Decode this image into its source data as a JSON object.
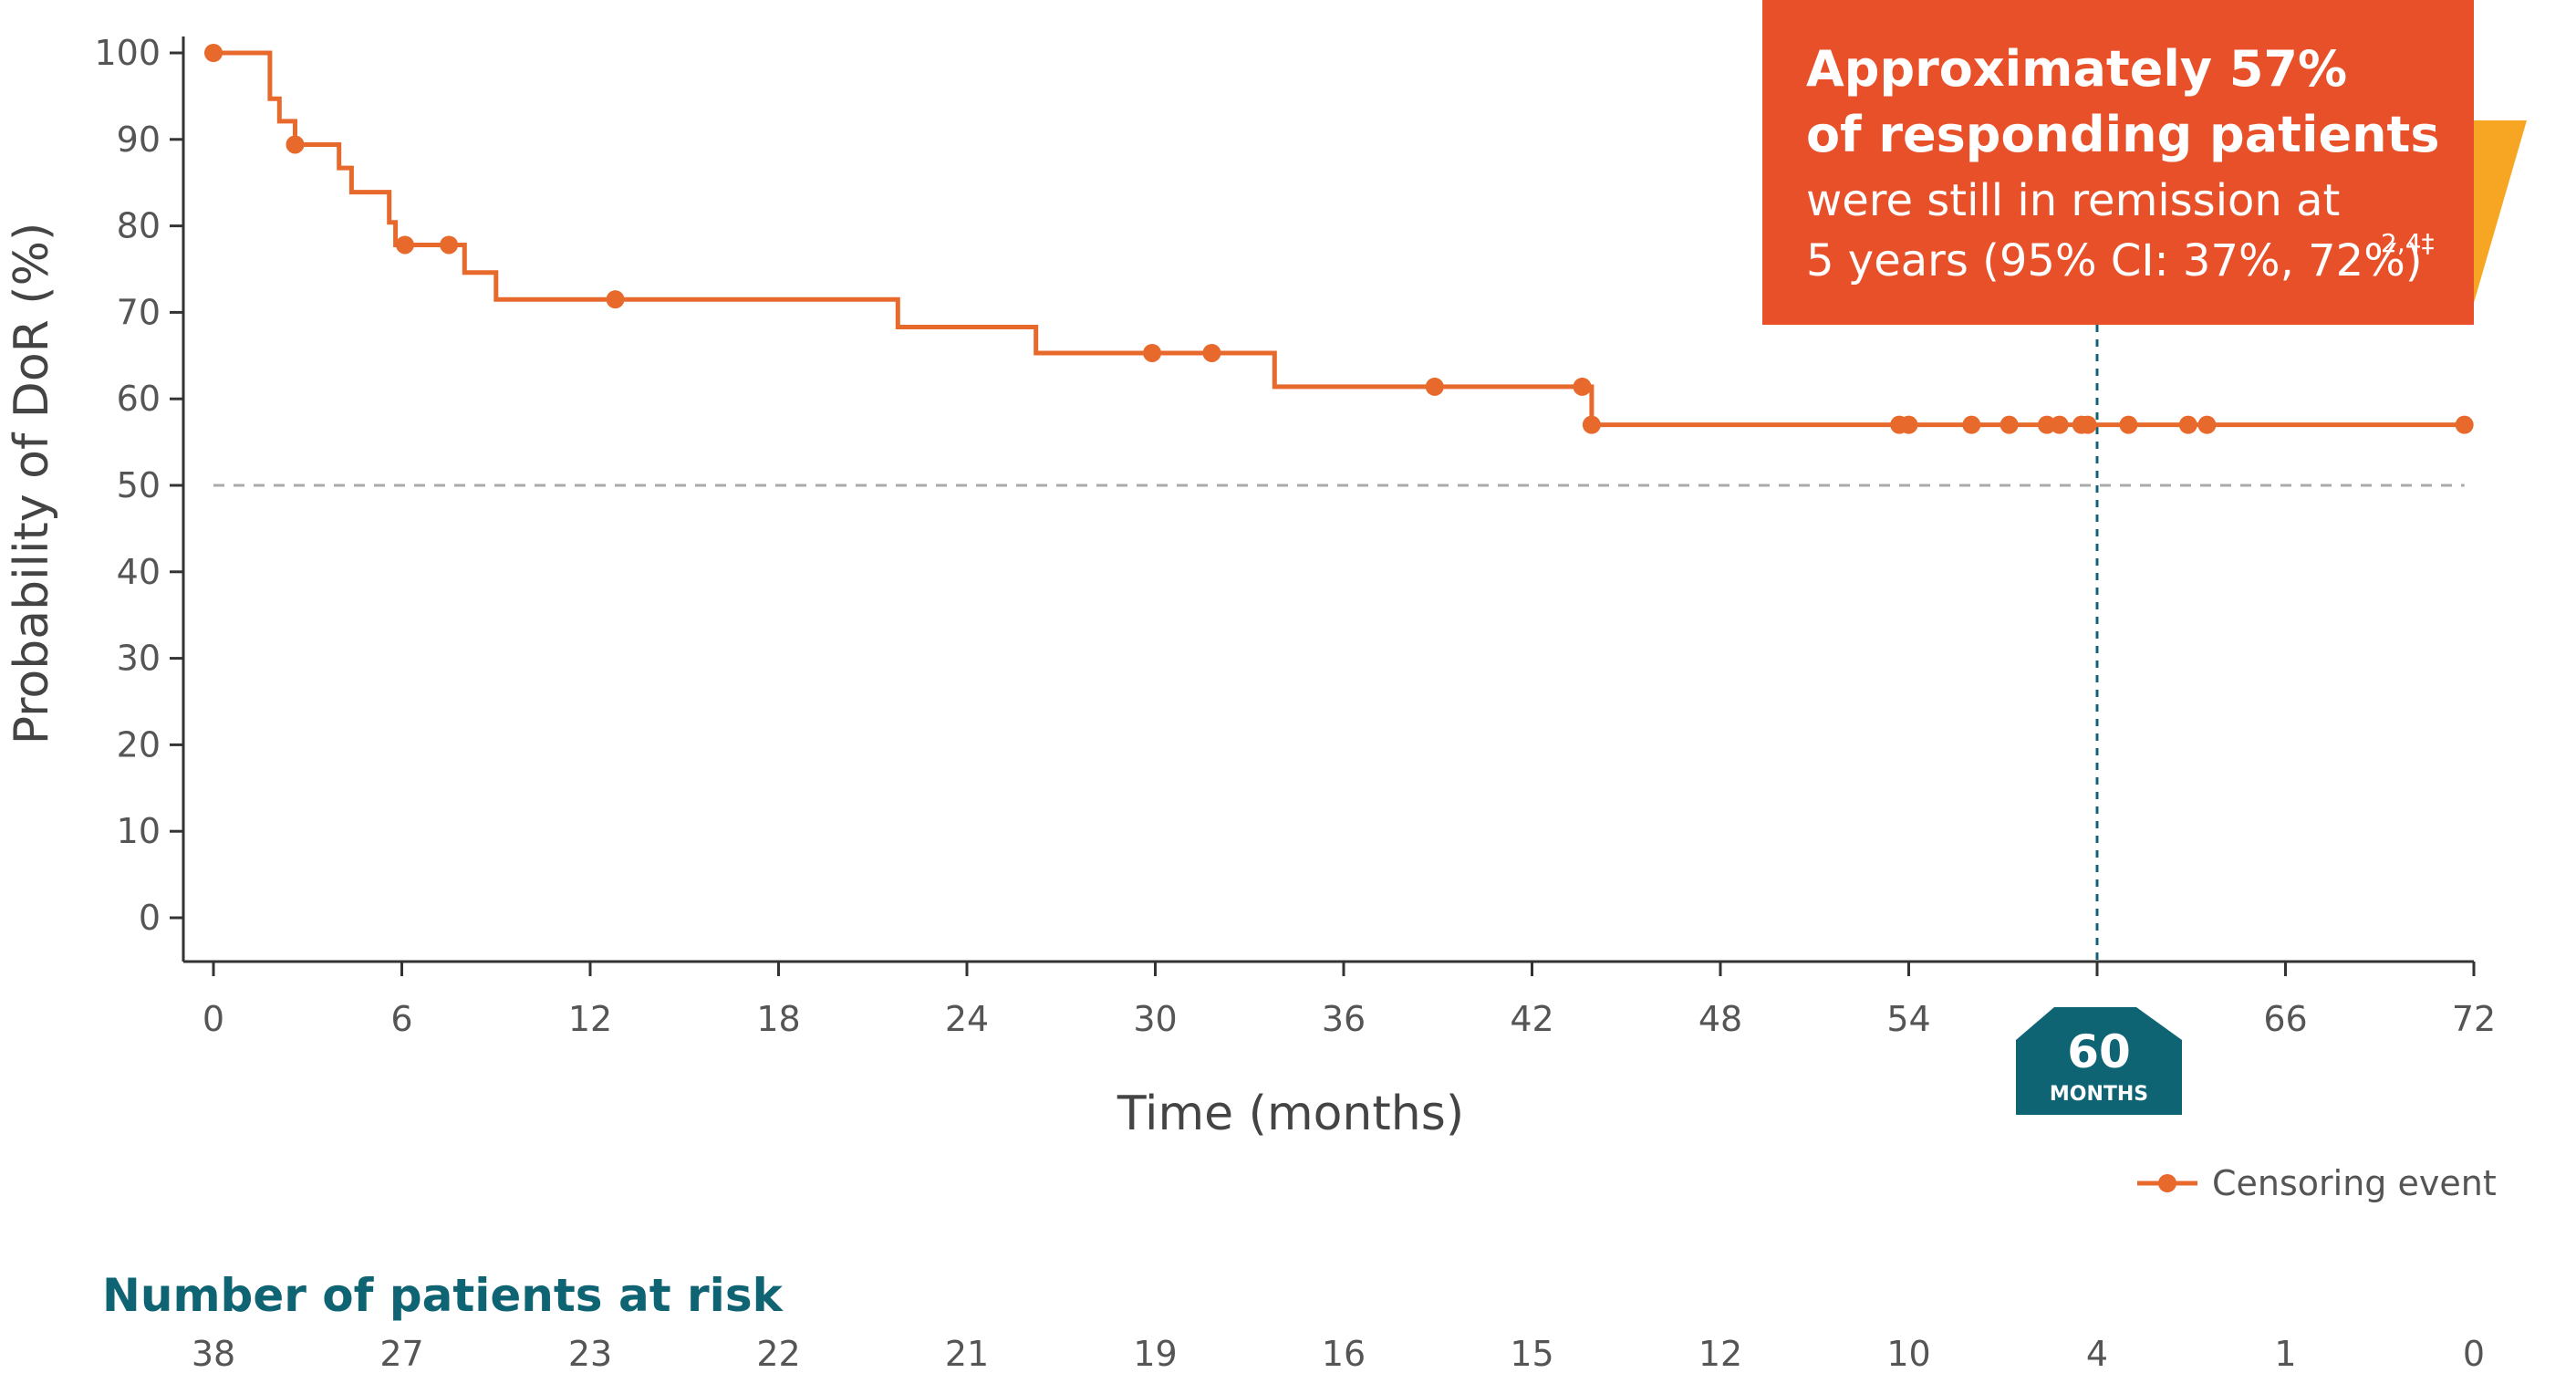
{
  "chart_data": {
    "type": "line",
    "subtype": "kaplan-meier step curve",
    "xlabel": "Time (months)",
    "ylabel": "Probability of DoR (%)",
    "xlim": [
      0,
      72
    ],
    "ylim": [
      0,
      100
    ],
    "xticks": [
      0,
      6,
      12,
      18,
      24,
      30,
      36,
      42,
      48,
      54,
      60,
      66,
      72
    ],
    "yticks": [
      0,
      10,
      20,
      30,
      40,
      50,
      60,
      70,
      80,
      90,
      100
    ],
    "grid": false,
    "reference_line": {
      "y": 50,
      "style": "dashed",
      "color": "#aaaaaa"
    },
    "highlight_line": {
      "x": 60,
      "style": "dashed",
      "color": "#0f6474"
    },
    "color": "#e8692c",
    "steps": [
      [
        0,
        100
      ],
      [
        1.8,
        100
      ],
      [
        1.8,
        94.7
      ],
      [
        2.1,
        94.7
      ],
      [
        2.1,
        92.1
      ],
      [
        2.6,
        92.1
      ],
      [
        2.6,
        89.4
      ],
      [
        4.0,
        89.4
      ],
      [
        4.0,
        86.7
      ],
      [
        4.4,
        86.7
      ],
      [
        4.4,
        83.9
      ],
      [
        5.6,
        83.9
      ],
      [
        5.6,
        80.4
      ],
      [
        5.8,
        80.4
      ],
      [
        5.8,
        77.8
      ],
      [
        8.0,
        77.8
      ],
      [
        8.0,
        74.6
      ],
      [
        9.0,
        74.6
      ],
      [
        9.0,
        71.5
      ],
      [
        21.8,
        71.5
      ],
      [
        21.8,
        68.3
      ],
      [
        26.2,
        68.3
      ],
      [
        26.2,
        65.3
      ],
      [
        33.8,
        65.3
      ],
      [
        33.8,
        61.4
      ],
      [
        43.9,
        61.4
      ],
      [
        43.9,
        57.0
      ],
      [
        71.7,
        57.0
      ]
    ],
    "censored": [
      {
        "x": 0,
        "y": 100
      },
      {
        "x": 2.6,
        "y": 89.4
      },
      {
        "x": 6.1,
        "y": 77.8
      },
      {
        "x": 7.5,
        "y": 77.8
      },
      {
        "x": 12.8,
        "y": 71.5
      },
      {
        "x": 29.9,
        "y": 65.3
      },
      {
        "x": 31.8,
        "y": 65.3
      },
      {
        "x": 38.9,
        "y": 61.4
      },
      {
        "x": 43.6,
        "y": 61.4
      },
      {
        "x": 43.9,
        "y": 57.0
      },
      {
        "x": 53.7,
        "y": 57.0
      },
      {
        "x": 54.0,
        "y": 57.0
      },
      {
        "x": 56.0,
        "y": 57.0
      },
      {
        "x": 57.2,
        "y": 57.0
      },
      {
        "x": 58.4,
        "y": 57.0
      },
      {
        "x": 58.8,
        "y": 57.0
      },
      {
        "x": 59.5,
        "y": 57.0
      },
      {
        "x": 59.7,
        "y": 57.0
      },
      {
        "x": 61.0,
        "y": 57.0
      },
      {
        "x": 62.9,
        "y": 57.0
      },
      {
        "x": 63.5,
        "y": 57.0
      },
      {
        "x": 71.7,
        "y": 57.0
      }
    ],
    "legend": {
      "label": "Censoring event",
      "position": "bottom-right"
    },
    "risk_table": {
      "title": "Number of patients at risk",
      "times": [
        0,
        6,
        12,
        18,
        24,
        30,
        36,
        42,
        48,
        54,
        60,
        66,
        72
      ],
      "values": [
        38,
        27,
        23,
        22,
        21,
        19,
        16,
        15,
        12,
        10,
        4,
        1,
        0
      ]
    },
    "callout": {
      "line1": "Approximately 57%",
      "line2": "of responding patients",
      "line3": "were still in remission at",
      "line4": "5 years (95% CI: 37%, 72%)",
      "superscript": "2,4‡",
      "color": "#e8502a",
      "accent_color": "#f6a623"
    },
    "milestone_badge": {
      "value": "60",
      "unit": "MONTHS",
      "color": "#0f6474"
    }
  }
}
